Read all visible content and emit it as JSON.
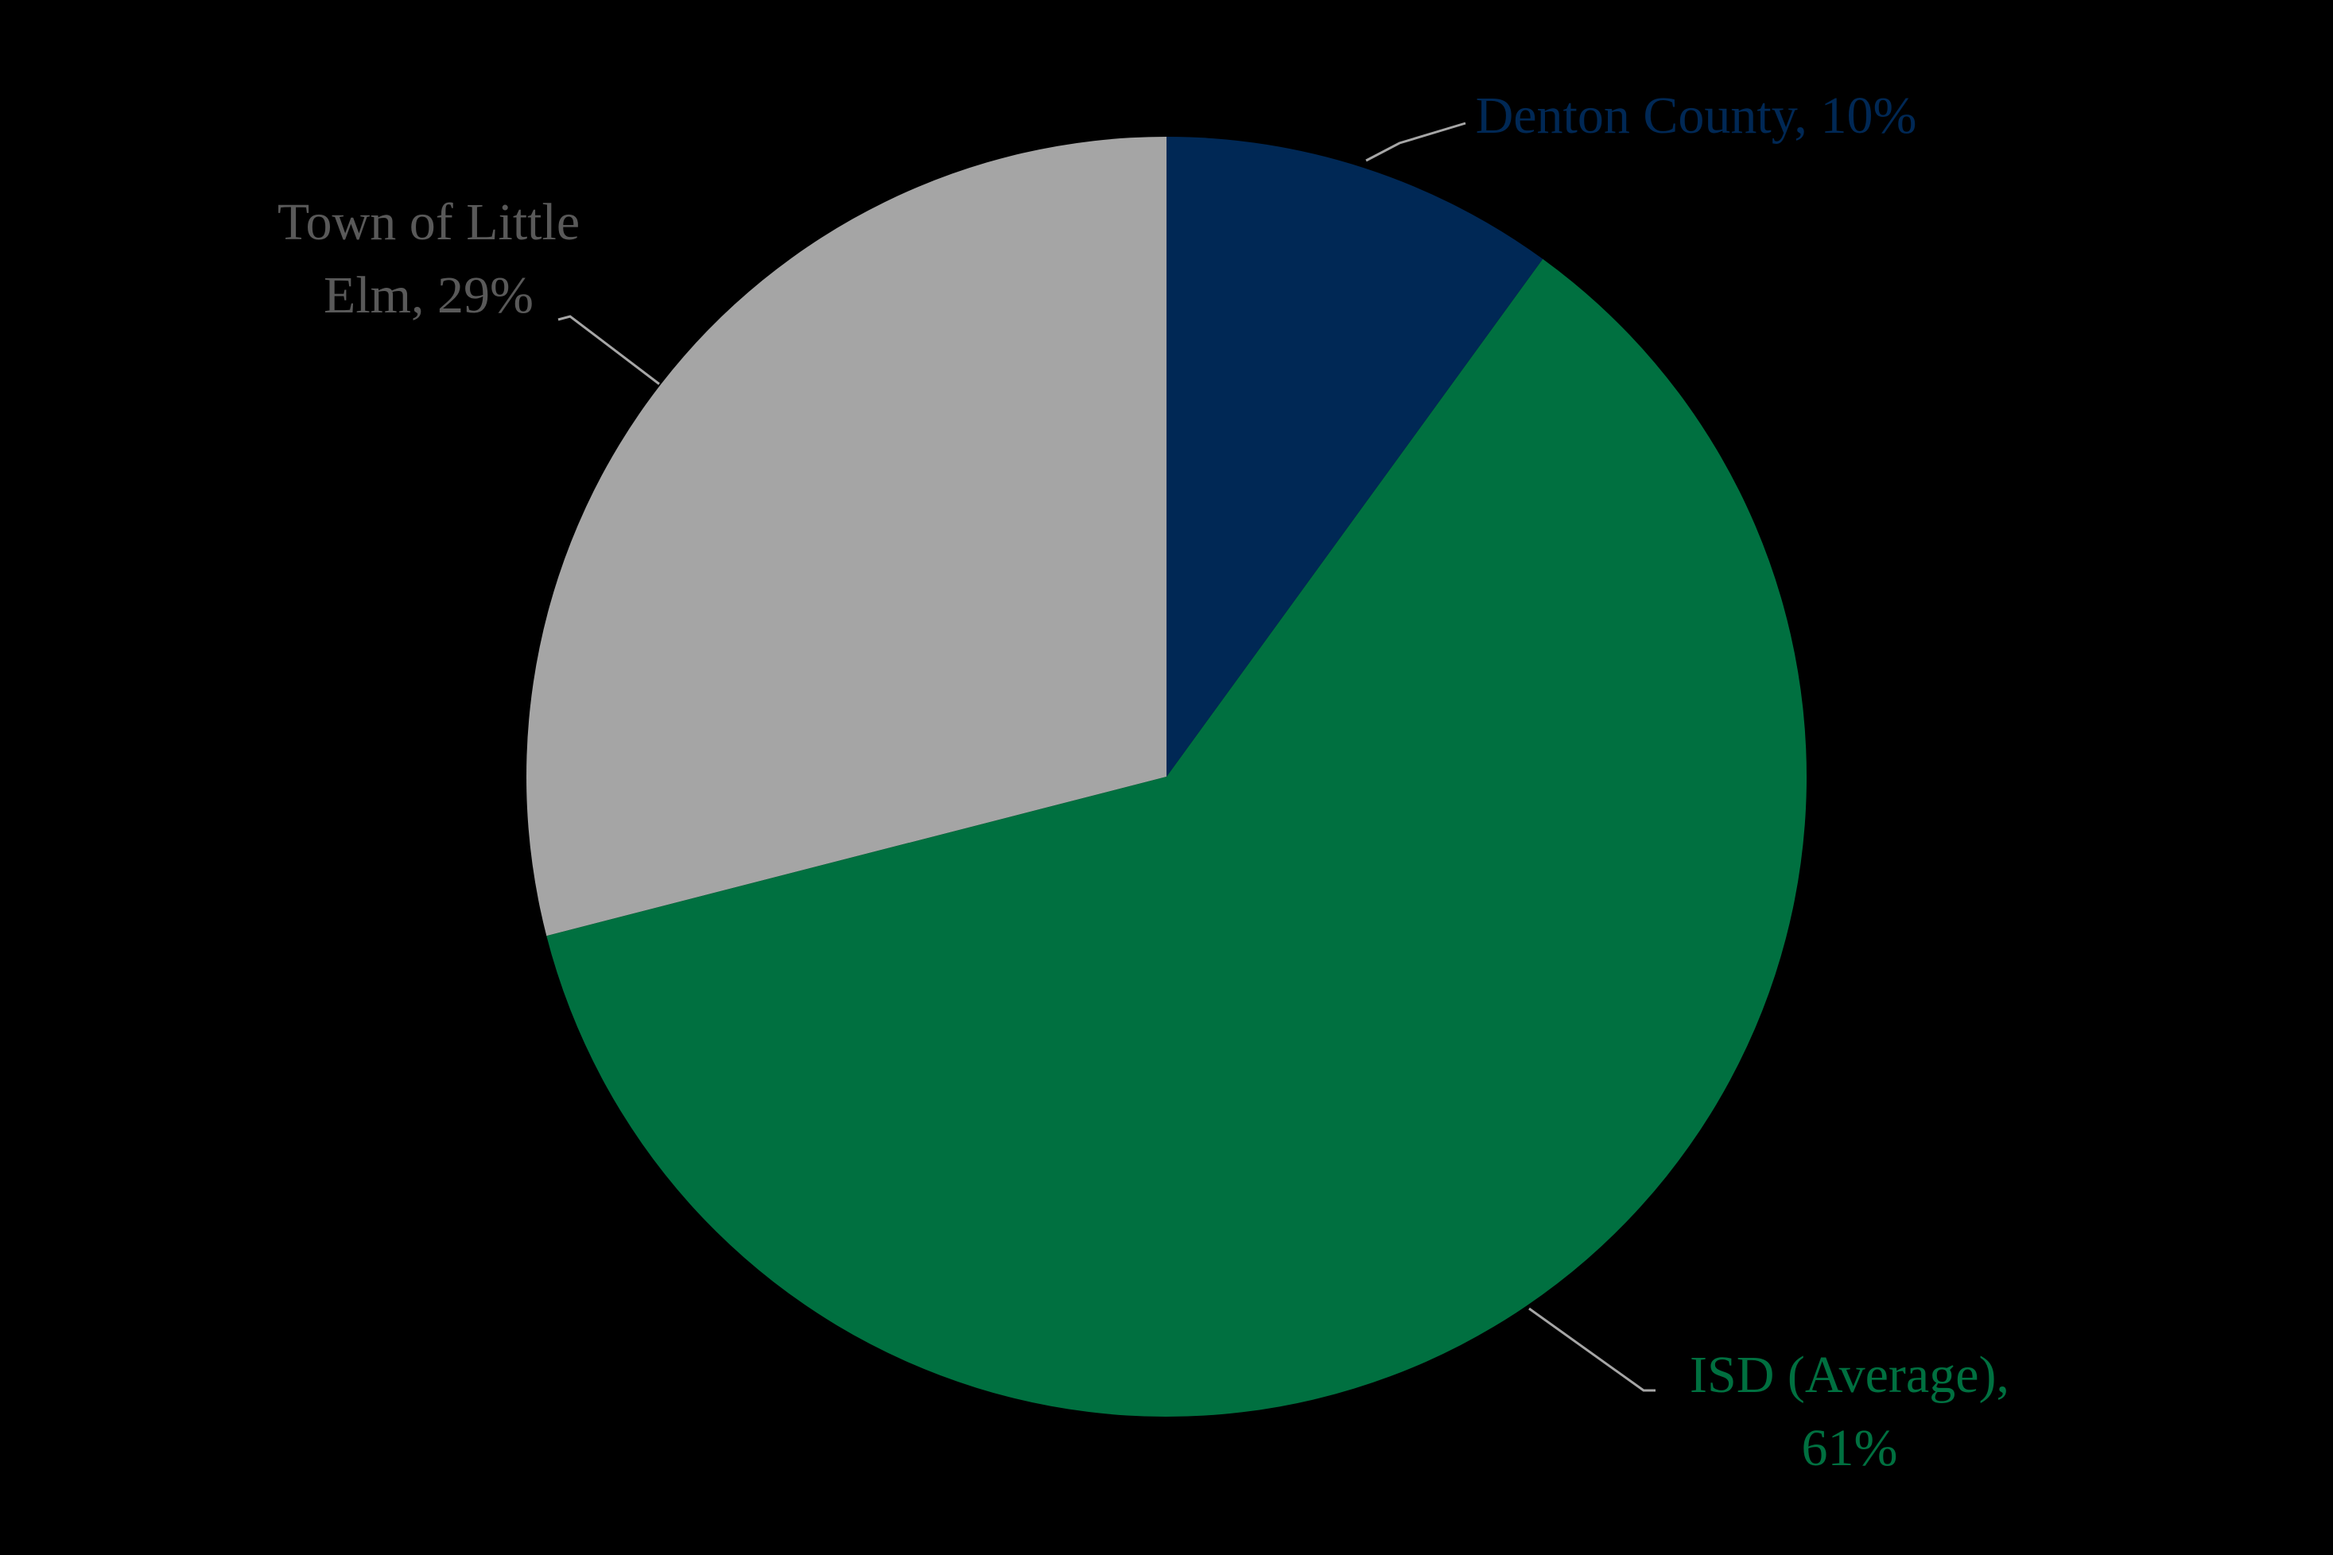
{
  "chart_data": {
    "type": "pie",
    "categories": [
      "Denton County,",
      "ISD (Average),",
      "Town of Little Elm,"
    ],
    "values": [
      10,
      61,
      29
    ],
    "value_labels": [
      "10%",
      "61%",
      "29%"
    ],
    "colors": [
      "#002855",
      "#007040",
      "#a5a5a5"
    ],
    "label_colors": [
      "#002855",
      "#007040",
      "#595959"
    ]
  }
}
